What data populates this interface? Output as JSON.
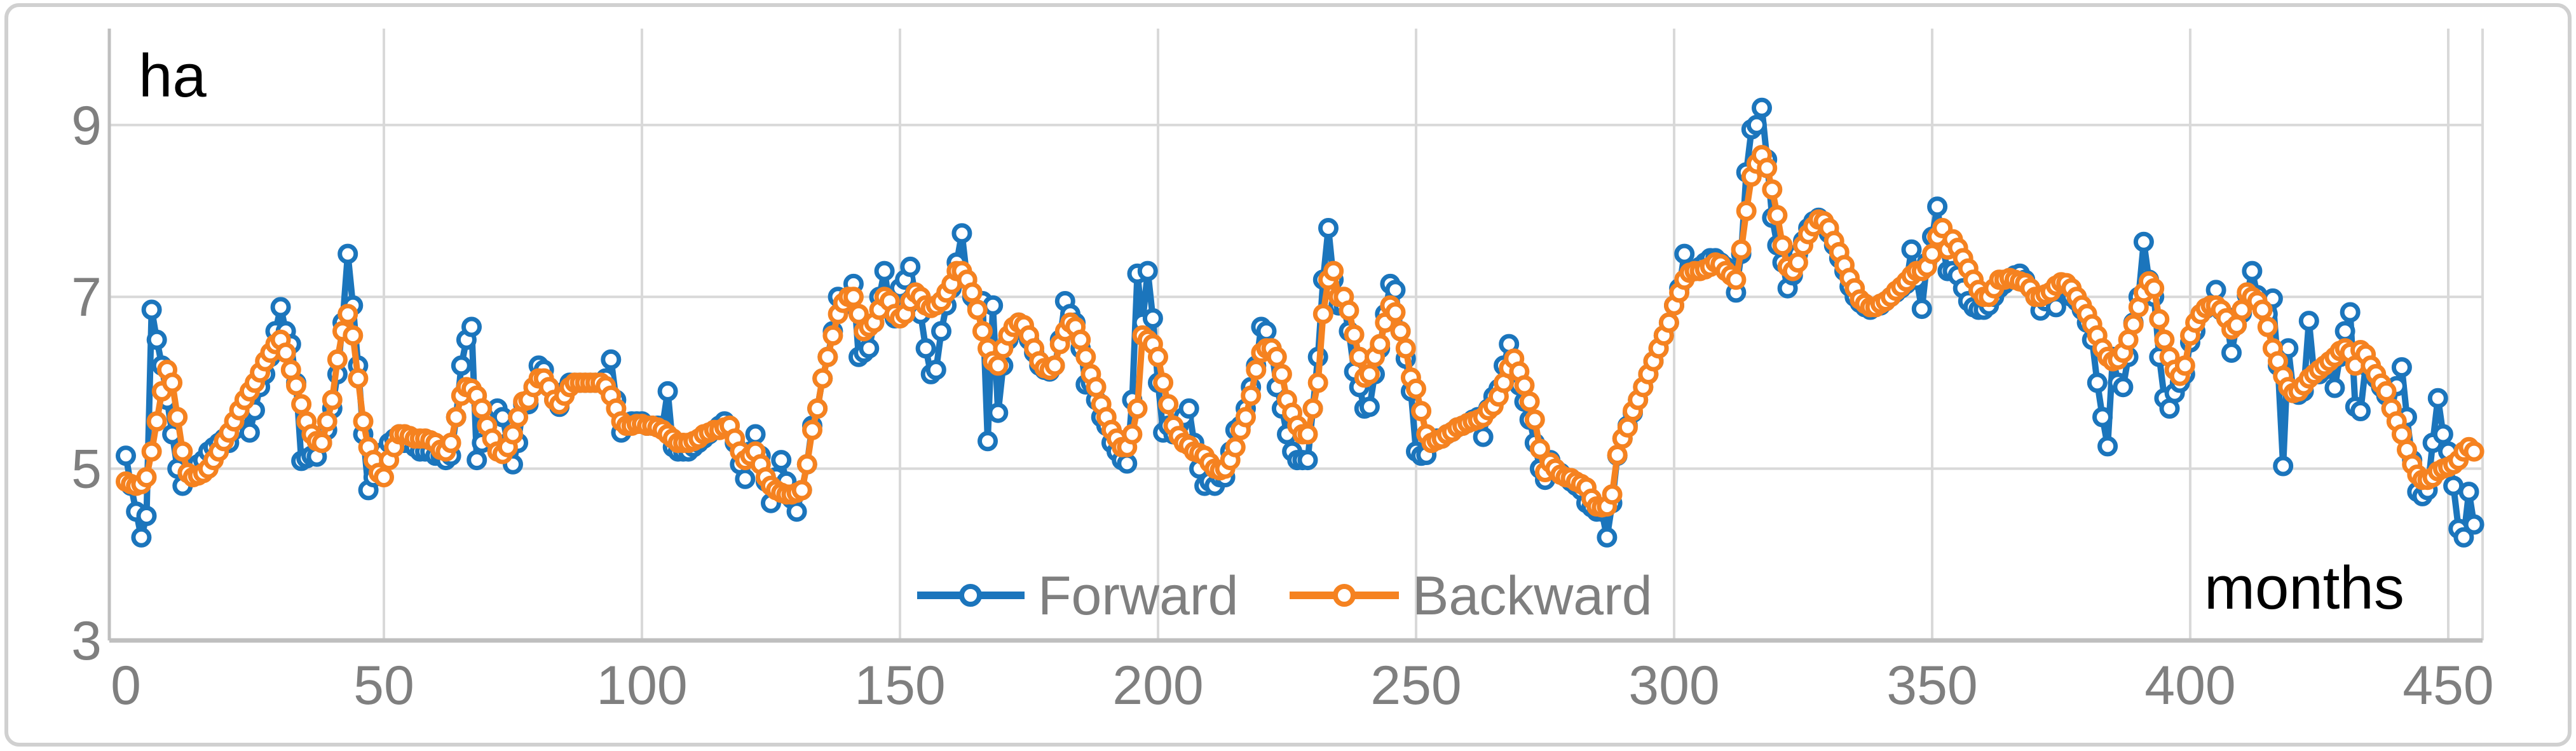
{
  "chart": {
    "y_axis_title": "ha",
    "x_axis_title": "months",
    "legend": {
      "items": [
        {
          "label": "Forward",
          "color": "#1B75BC"
        },
        {
          "label": "Backward",
          "color": "#F58220"
        }
      ],
      "position": "bottom-center"
    },
    "colors": {
      "forward": "#1B75BC",
      "backward": "#F58220",
      "gridline": "#D9D9D9",
      "axis_line": "#BFBFBF",
      "tick_text": "#7f7f7f",
      "border": "#D0D0D0",
      "marker_fill": "#FFFFFF"
    }
  },
  "chart_data": {
    "type": "line",
    "title": "",
    "xlabel": "months",
    "ylabel": "ha",
    "x_ticks": [
      0,
      50,
      100,
      150,
      200,
      250,
      300,
      350,
      400,
      450
    ],
    "y_ticks": [
      3,
      5,
      7,
      9
    ],
    "xlim": [
      0,
      456
    ],
    "ylim": [
      3,
      10.1
    ],
    "grid": true,
    "legend_position": "bottom-center",
    "marker": "open-circle",
    "x_start": 0,
    "x_step": 1,
    "series": [
      {
        "name": "Forward",
        "color": "#1B75BC",
        "values": [
          5.15,
          4.8,
          4.5,
          4.2,
          4.45,
          6.85,
          6.5,
          6.2,
          5.8,
          5.4,
          5.0,
          4.8,
          4.95,
          5.0,
          5.05,
          5.1,
          5.2,
          5.25,
          5.3,
          5.35,
          5.3,
          5.45,
          5.6,
          5.73,
          5.42,
          5.68,
          5.95,
          6.1,
          6.3,
          6.6,
          6.88,
          6.6,
          6.45,
          6.0,
          5.09,
          5.12,
          5.15,
          5.14,
          5.3,
          5.45,
          5.7,
          6.1,
          6.7,
          7.5,
          6.9,
          6.2,
          5.4,
          4.75,
          4.9,
          5.0,
          5.2,
          5.3,
          5.35,
          5.4,
          5.3,
          5.3,
          5.25,
          5.2,
          5.2,
          5.2,
          5.15,
          5.15,
          5.1,
          5.15,
          5.6,
          6.2,
          6.5,
          6.65,
          5.1,
          5.3,
          5.6,
          5.65,
          5.7,
          5.6,
          5.3,
          5.05,
          5.3,
          5.75,
          5.75,
          5.95,
          6.2,
          6.15,
          5.95,
          5.8,
          5.72,
          5.9,
          6.0,
          6.0,
          6.0,
          6.0,
          6.0,
          6.0,
          6.0,
          6.05,
          6.27,
          5.8,
          5.42,
          5.5,
          5.55,
          5.55,
          5.55,
          5.5,
          5.5,
          5.5,
          5.5,
          5.9,
          5.25,
          5.2,
          5.2,
          5.2,
          5.25,
          5.3,
          5.35,
          5.4,
          5.45,
          5.5,
          5.55,
          5.5,
          5.3,
          5.05,
          4.88,
          5.2,
          5.4,
          5.15,
          4.85,
          4.6,
          4.9,
          5.1,
          4.85,
          4.65,
          4.5,
          4.75,
          5.05,
          5.5,
          5.7,
          6.05,
          6.3,
          6.6,
          7.0,
          6.9,
          7.0,
          7.15,
          6.3,
          6.35,
          6.4,
          6.7,
          7.0,
          7.3,
          6.9,
          6.75,
          7.1,
          7.2,
          7.35,
          7.0,
          6.8,
          6.4,
          6.1,
          6.15,
          6.6,
          6.9,
          7.1,
          7.4,
          7.74,
          7.2,
          7.0,
          6.9,
          6.95,
          5.32,
          6.9,
          5.65,
          6.2,
          6.5,
          6.6,
          6.7,
          6.65,
          6.5,
          6.35,
          6.2,
          6.15,
          6.13,
          6.2,
          6.5,
          6.95,
          6.8,
          6.7,
          6.4,
          5.98,
          6.0,
          5.8,
          5.6,
          5.5,
          5.3,
          5.2,
          5.1,
          5.06,
          5.8,
          7.27,
          6.7,
          7.3,
          6.75,
          6.0,
          5.42,
          5.5,
          5.4,
          5.5,
          5.6,
          5.7,
          5.3,
          5.0,
          4.8,
          4.85,
          4.8,
          4.9,
          4.9,
          5.2,
          5.45,
          5.5,
          5.7,
          5.95,
          6.2,
          6.65,
          6.6,
          6.4,
          5.95,
          5.7,
          5.4,
          5.2,
          5.1,
          5.1,
          5.1,
          5.7,
          6.3,
          7.2,
          7.8,
          7.2,
          6.9,
          6.9,
          6.6,
          6.13,
          5.95,
          5.7,
          5.72,
          6.1,
          6.4,
          6.8,
          7.15,
          7.08,
          6.6,
          6.28,
          5.9,
          5.2,
          5.15,
          5.16,
          5.3,
          5.35,
          5.35,
          5.4,
          5.43,
          5.48,
          5.5,
          5.53,
          5.57,
          5.6,
          5.37,
          5.7,
          5.84,
          5.93,
          6.2,
          6.45,
          6.13,
          5.97,
          5.78,
          5.57,
          5.3,
          5.0,
          4.87,
          5.1,
          5.0,
          4.95,
          4.9,
          4.85,
          4.8,
          4.75,
          4.6,
          4.55,
          4.5,
          4.5,
          4.2,
          4.6,
          5.15,
          5.35,
          5.5,
          5.65,
          5.8,
          5.95,
          6.1,
          6.25,
          6.4,
          6.55,
          6.7,
          6.9,
          7.1,
          7.5,
          7.3,
          7.3,
          7.35,
          7.4,
          7.45,
          7.45,
          7.4,
          7.35,
          7.3,
          7.05,
          7.5,
          8.45,
          8.95,
          9.0,
          9.2,
          8.6,
          7.92,
          7.6,
          7.4,
          7.1,
          7.25,
          7.5,
          7.65,
          7.8,
          7.88,
          7.92,
          7.85,
          7.74,
          7.6,
          7.45,
          7.3,
          7.12,
          7.0,
          6.93,
          6.88,
          6.85,
          6.88,
          6.9,
          6.95,
          7.0,
          7.05,
          7.1,
          7.15,
          7.55,
          7.2,
          6.86,
          7.4,
          7.7,
          8.05,
          7.6,
          7.3,
          7.3,
          7.25,
          7.1,
          6.95,
          6.88,
          6.85,
          6.85,
          6.9,
          7.0,
          7.1,
          7.15,
          7.2,
          7.25,
          7.27,
          7.2,
          7.1,
          7.0,
          6.84,
          6.95,
          7.0,
          6.88,
          7.1,
          7.1,
          7.0,
          6.95,
          6.85,
          6.7,
          6.5,
          6.0,
          5.6,
          5.26,
          6.3,
          6.0,
          5.95,
          6.3,
          6.7,
          7.0,
          7.64,
          7.2,
          7.0,
          6.3,
          5.82,
          5.7,
          5.88,
          6.0,
          6.1,
          6.47,
          6.6,
          6.8,
          6.86,
          6.9,
          7.08,
          6.84,
          6.77,
          6.35,
          6.67,
          6.81,
          7.02,
          7.3,
          7.02,
          6.92,
          6.8,
          6.98,
          6.2,
          5.03,
          6.4,
          5.88,
          5.86,
          5.9,
          6.72,
          6.1,
          6.1,
          6.15,
          6.2,
          5.94,
          6.3,
          6.6,
          6.82,
          5.72,
          5.67,
          6.2,
          6.15,
          6.05,
          5.95,
          5.85,
          5.7,
          5.96,
          6.18,
          5.6,
          5.1,
          4.73,
          4.68,
          4.75,
          5.3,
          5.82,
          5.4,
          5.2,
          4.8,
          4.3,
          4.2,
          4.73,
          4.35
        ]
      },
      {
        "name": "Backward",
        "color": "#F58220",
        "values": [
          4.85,
          4.82,
          4.8,
          4.82,
          4.9,
          5.2,
          5.55,
          5.9,
          6.15,
          6.0,
          5.6,
          5.2,
          4.95,
          4.9,
          4.92,
          4.95,
          5.0,
          5.1,
          5.2,
          5.32,
          5.42,
          5.55,
          5.68,
          5.8,
          5.9,
          6.0,
          6.12,
          6.25,
          6.35,
          6.45,
          6.5,
          6.35,
          6.15,
          5.97,
          5.75,
          5.55,
          5.4,
          5.32,
          5.3,
          5.55,
          5.8,
          6.27,
          6.6,
          6.8,
          6.55,
          6.05,
          5.55,
          5.25,
          5.1,
          4.95,
          4.9,
          5.1,
          5.25,
          5.4,
          5.4,
          5.38,
          5.35,
          5.35,
          5.35,
          5.33,
          5.3,
          5.22,
          5.2,
          5.3,
          5.6,
          5.85,
          5.95,
          5.93,
          5.85,
          5.7,
          5.5,
          5.35,
          5.2,
          5.17,
          5.25,
          5.4,
          5.6,
          5.78,
          5.8,
          5.95,
          6.05,
          6.05,
          5.95,
          5.8,
          5.75,
          5.85,
          5.95,
          6.0,
          6.0,
          6.0,
          6.0,
          6.0,
          6.0,
          5.96,
          5.85,
          5.7,
          5.55,
          5.5,
          5.5,
          5.52,
          5.52,
          5.5,
          5.5,
          5.48,
          5.45,
          5.4,
          5.35,
          5.3,
          5.3,
          5.3,
          5.32,
          5.35,
          5.4,
          5.42,
          5.45,
          5.45,
          5.48,
          5.5,
          5.35,
          5.2,
          5.1,
          5.15,
          5.2,
          5.05,
          4.9,
          4.8,
          4.75,
          4.72,
          4.7,
          4.7,
          4.72,
          4.75,
          5.05,
          5.45,
          5.7,
          6.05,
          6.3,
          6.55,
          6.8,
          6.93,
          7.0,
          7.0,
          6.8,
          6.6,
          6.65,
          6.7,
          6.85,
          7.0,
          6.95,
          6.8,
          6.75,
          6.8,
          6.95,
          7.05,
          7.0,
          6.9,
          6.87,
          6.9,
          6.95,
          7.05,
          7.15,
          7.3,
          7.3,
          7.2,
          7.05,
          6.85,
          6.6,
          6.4,
          6.25,
          6.2,
          6.4,
          6.55,
          6.65,
          6.7,
          6.67,
          6.55,
          6.4,
          6.25,
          6.17,
          6.15,
          6.2,
          6.45,
          6.6,
          6.7,
          6.65,
          6.5,
          6.3,
          6.1,
          5.95,
          5.75,
          5.6,
          5.45,
          5.35,
          5.25,
          5.25,
          5.4,
          5.7,
          6.55,
          6.5,
          6.45,
          6.3,
          6.0,
          5.75,
          5.5,
          5.38,
          5.3,
          5.27,
          5.2,
          5.18,
          5.15,
          5.07,
          5.0,
          4.98,
          5.0,
          5.1,
          5.25,
          5.45,
          5.6,
          5.85,
          6.15,
          6.35,
          6.4,
          6.4,
          6.3,
          6.1,
          5.8,
          5.65,
          5.5,
          5.4,
          5.4,
          5.7,
          6.0,
          6.8,
          7.2,
          7.3,
          7.0,
          7.0,
          6.84,
          6.56,
          6.3,
          6.06,
          6.1,
          6.3,
          6.45,
          6.7,
          6.9,
          6.82,
          6.6,
          6.4,
          6.06,
          5.93,
          5.67,
          5.4,
          5.3,
          5.33,
          5.35,
          5.4,
          5.43,
          5.48,
          5.5,
          5.53,
          5.55,
          5.57,
          5.6,
          5.68,
          5.73,
          5.84,
          6.0,
          6.17,
          6.28,
          6.13,
          5.97,
          5.78,
          5.57,
          5.23,
          4.96,
          5.07,
          5.0,
          4.93,
          4.9,
          4.89,
          4.85,
          4.82,
          4.78,
          4.65,
          4.56,
          4.55,
          4.56,
          4.7,
          5.16,
          5.35,
          5.48,
          5.67,
          5.8,
          5.95,
          6.1,
          6.25,
          6.4,
          6.55,
          6.7,
          6.9,
          7.05,
          7.2,
          7.28,
          7.3,
          7.3,
          7.32,
          7.35,
          7.4,
          7.38,
          7.3,
          7.25,
          7.2,
          7.55,
          8.0,
          8.4,
          8.55,
          8.65,
          8.5,
          8.25,
          7.95,
          7.6,
          7.35,
          7.3,
          7.4,
          7.6,
          7.73,
          7.82,
          7.9,
          7.88,
          7.8,
          7.65,
          7.52,
          7.37,
          7.22,
          7.1,
          6.97,
          6.92,
          6.88,
          6.88,
          6.92,
          6.95,
          7.0,
          7.07,
          7.12,
          7.18,
          7.25,
          7.3,
          7.3,
          7.35,
          7.5,
          7.7,
          7.8,
          7.55,
          7.67,
          7.57,
          7.45,
          7.33,
          7.2,
          7.08,
          7.0,
          7.0,
          7.1,
          7.2,
          7.2,
          7.22,
          7.2,
          7.18,
          7.16,
          7.1,
          7.0,
          7.0,
          7.03,
          7.06,
          7.13,
          7.17,
          7.16,
          7.1,
          7.0,
          6.9,
          6.8,
          6.68,
          6.55,
          6.4,
          6.3,
          6.25,
          6.27,
          6.35,
          6.5,
          6.68,
          6.88,
          7.05,
          7.18,
          7.1,
          6.74,
          6.5,
          6.3,
          6.15,
          6.08,
          6.2,
          6.55,
          6.7,
          6.8,
          6.87,
          6.9,
          6.9,
          6.85,
          6.75,
          6.62,
          6.67,
          6.85,
          7.05,
          7.0,
          6.95,
          6.85,
          6.65,
          6.4,
          6.25,
          6.08,
          5.95,
          5.88,
          5.9,
          5.97,
          6.05,
          6.1,
          6.15,
          6.2,
          6.25,
          6.3,
          6.37,
          6.4,
          6.35,
          6.2,
          6.38,
          6.33,
          6.2,
          6.1,
          5.99,
          5.9,
          5.7,
          5.55,
          5.4,
          5.22,
          5.05,
          4.93,
          4.87,
          4.87,
          4.9,
          4.97,
          5.0,
          5.02,
          5.05,
          5.1,
          5.2,
          5.25,
          5.2
        ]
      }
    ]
  }
}
